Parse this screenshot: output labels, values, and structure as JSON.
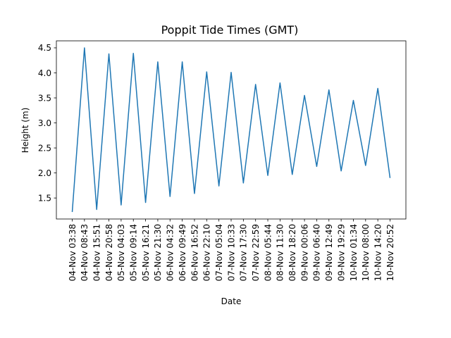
{
  "chart_data": {
    "type": "line",
    "title": "Poppit Tide Times (GMT)",
    "xlabel": "Date",
    "ylabel": "Height (m)",
    "x": [
      "04-Nov 03:38",
      "04-Nov 08:43",
      "04-Nov 15:51",
      "04-Nov 20:58",
      "05-Nov 04:03",
      "05-Nov 09:14",
      "05-Nov 16:21",
      "05-Nov 21:30",
      "06-Nov 04:32",
      "06-Nov 09:49",
      "06-Nov 16:52",
      "06-Nov 22:10",
      "07-Nov 05:04",
      "07-Nov 10:33",
      "07-Nov 17:30",
      "07-Nov 22:59",
      "08-Nov 05:44",
      "08-Nov 11:30",
      "08-Nov 18:20",
      "09-Nov 00:06",
      "09-Nov 06:40",
      "09-Nov 12:49",
      "09-Nov 19:29",
      "10-Nov 01:34",
      "10-Nov 08:00",
      "10-Nov 14:20",
      "10-Nov 20:52"
    ],
    "series": [
      {
        "values": [
          1.22,
          4.5,
          1.27,
          4.38,
          1.36,
          4.39,
          1.41,
          4.22,
          1.53,
          4.22,
          1.59,
          4.02,
          1.74,
          4.01,
          1.8,
          3.77,
          1.95,
          3.8,
          1.97,
          3.55,
          2.13,
          3.66,
          2.04,
          3.45,
          2.15,
          3.69,
          1.9
        ],
        "color": "#1f77b4"
      }
    ],
    "yticks": [
      "1.5",
      "2.0",
      "2.5",
      "3.0",
      "3.5",
      "4.0",
      "4.5"
    ],
    "ylim": [
      1.08,
      4.64
    ],
    "grid": false,
    "legend": "none"
  }
}
